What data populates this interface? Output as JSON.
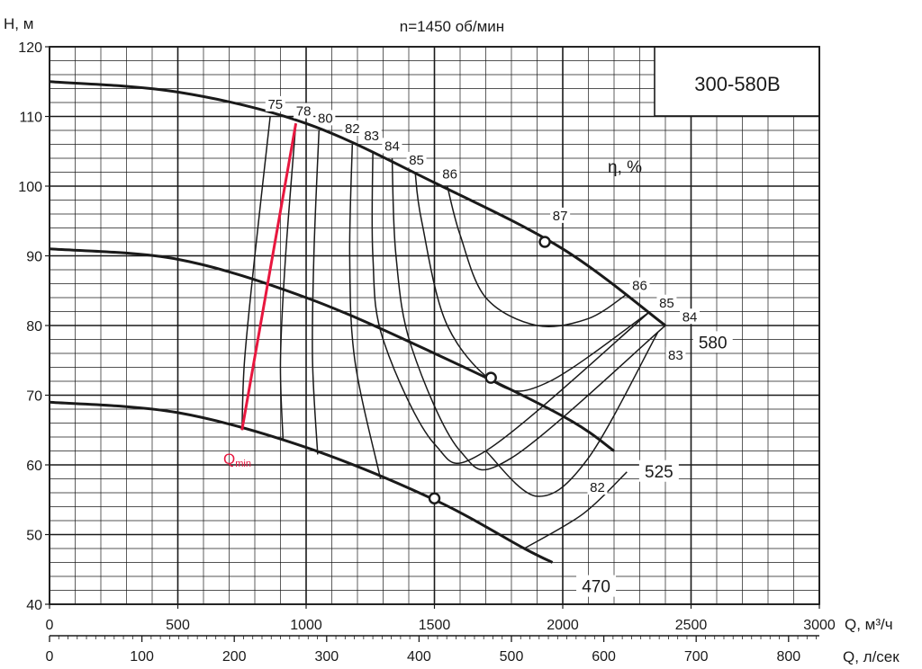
{
  "chart_data": {
    "type": "line",
    "title": "n=1450 об/мин",
    "model": "300-580В",
    "ylabel": "H, м",
    "xlabel": "Q, м³/ч",
    "xlabel2": "Q, л/сек",
    "efficiency_label": "η, %",
    "qmin_label": "Q",
    "qmin_sub": "min",
    "xlim": [
      0,
      3000
    ],
    "ylim": [
      40,
      120
    ],
    "x2lim": [
      0,
      833.3
    ],
    "grid": true,
    "x_ticks": [
      "0",
      "500",
      "1000",
      "1500",
      "2000",
      "2500",
      "3000"
    ],
    "x2_ticks": [
      "0",
      "100",
      "200",
      "300",
      "400",
      "500",
      "600",
      "700",
      "800"
    ],
    "y_ticks": [
      "40",
      "50",
      "60",
      "70",
      "80",
      "90",
      "100",
      "110",
      "120"
    ],
    "series": [
      {
        "name": "580",
        "points": [
          [
            0,
            115
          ],
          [
            500,
            113.5
          ],
          [
            1000,
            109
          ],
          [
            1500,
            100.5
          ],
          [
            2000,
            91
          ],
          [
            2400,
            80
          ]
        ]
      },
      {
        "name": "525",
        "points": [
          [
            0,
            91
          ],
          [
            500,
            89.5
          ],
          [
            1000,
            84
          ],
          [
            1500,
            76
          ],
          [
            2000,
            67
          ],
          [
            2200,
            62
          ]
        ]
      },
      {
        "name": "470",
        "points": [
          [
            0,
            69
          ],
          [
            500,
            67.5
          ],
          [
            1000,
            62.5
          ],
          [
            1500,
            55
          ],
          [
            1850,
            48
          ],
          [
            1960,
            46
          ]
        ]
      }
    ],
    "bep_points": [
      [
        1930,
        92
      ],
      [
        1720,
        72.5
      ],
      [
        1500,
        55.2
      ]
    ],
    "efficiency_curves": [
      {
        "label": "75",
        "points": [
          [
            860,
            110
          ],
          [
            800,
            90
          ],
          [
            760,
            75
          ],
          [
            750,
            65
          ]
        ]
      },
      {
        "label": "78",
        "points": [
          [
            960,
            109
          ],
          [
            920,
            90
          ],
          [
            900,
            75
          ],
          [
            910,
            63.5
          ]
        ]
      },
      {
        "label": "80",
        "points": [
          [
            1050,
            108
          ],
          [
            1030,
            90
          ],
          [
            1025,
            75
          ],
          [
            1045,
            61.5
          ]
        ]
      },
      {
        "label": "82",
        "points": [
          [
            1180,
            106
          ],
          [
            1170,
            90
          ],
          [
            1190,
            75
          ],
          [
            1290,
            58
          ]
        ]
      },
      {
        "label": "83",
        "points": [
          [
            1260,
            105
          ],
          [
            1260,
            90
          ],
          [
            1300,
            78
          ],
          [
            1500,
            63
          ],
          [
            1700,
            62
          ],
          [
            2340,
            82
          ]
        ]
      },
      {
        "label": "84",
        "points": [
          [
            1335,
            104
          ],
          [
            1350,
            90
          ],
          [
            1410,
            77
          ],
          [
            1600,
            62
          ],
          [
            1800,
            61
          ],
          [
            2400,
            80
          ]
        ]
      },
      {
        "label": "85",
        "points": [
          [
            1425,
            102
          ],
          [
            1450,
            95
          ],
          [
            1550,
            80
          ],
          [
            1750,
            71.5
          ],
          [
            1950,
            72
          ],
          [
            2340,
            82
          ]
        ]
      },
      {
        "label": "86",
        "points": [
          [
            1550,
            100
          ],
          [
            1600,
            93
          ],
          [
            1700,
            84
          ],
          [
            1900,
            80
          ],
          [
            2100,
            81
          ],
          [
            2250,
            84.5
          ]
        ]
      },
      {
        "label": "83",
        "points": [
          [
            1700,
            62
          ],
          [
            1900,
            55.5
          ],
          [
            2100,
            61
          ],
          [
            2370,
            79
          ]
        ]
      },
      {
        "label": "82",
        "points": [
          [
            1850,
            48
          ],
          [
            2080,
            53
          ],
          [
            2250,
            59
          ]
        ]
      }
    ],
    "efficiency_labels": [
      {
        "text": "75",
        "x": 880,
        "y": 111.5
      },
      {
        "text": "78",
        "x": 990,
        "y": 110.5
      },
      {
        "text": "80",
        "x": 1075,
        "y": 109.5
      },
      {
        "text": "82",
        "x": 1180,
        "y": 108
      },
      {
        "text": "83",
        "x": 1255,
        "y": 107
      },
      {
        "text": "84",
        "x": 1335,
        "y": 105.5
      },
      {
        "text": "85",
        "x": 1430,
        "y": 103.5
      },
      {
        "text": "86",
        "x": 1560,
        "y": 101.5
      },
      {
        "text": "87",
        "x": 1990,
        "y": 95.5
      },
      {
        "text": "86",
        "x": 2300,
        "y": 85.5
      },
      {
        "text": "85",
        "x": 2405,
        "y": 83
      },
      {
        "text": "84",
        "x": 2495,
        "y": 81
      },
      {
        "text": "83",
        "x": 2440,
        "y": 75.5
      },
      {
        "text": "82",
        "x": 2135,
        "y": 56.5
      }
    ],
    "impeller_labels": [
      {
        "text": "580",
        "x": 2585,
        "y": 77.5
      },
      {
        "text": "525",
        "x": 2375,
        "y": 59
      },
      {
        "text": "470",
        "x": 2130,
        "y": 42.5
      }
    ],
    "qmin_line": [
      [
        750,
        65
      ],
      [
        960,
        109
      ]
    ]
  }
}
